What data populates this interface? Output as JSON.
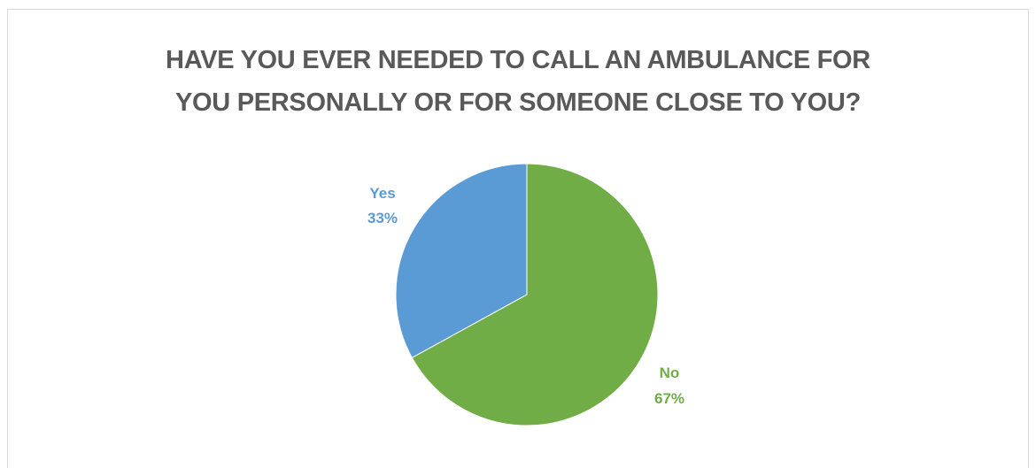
{
  "chart_data": {
    "type": "pie",
    "title": "HAVE YOU EVER NEEDED TO CALL AN AMBULANCE FOR YOU PERSONALLY OR FOR SOMEONE CLOSE TO YOU?",
    "title_lines": [
      "HAVE YOU EVER NEEDED TO CALL AN AMBULANCE FOR",
      "YOU PERSONALLY OR FOR SOMEONE CLOSE TO YOU?"
    ],
    "categories": [
      "Yes",
      "No"
    ],
    "values": [
      33,
      67
    ],
    "labels": [
      "33%",
      "67%"
    ],
    "colors": [
      "#5b9bd5",
      "#70ad47"
    ],
    "legend": "none",
    "data_labels": "outside-end"
  }
}
